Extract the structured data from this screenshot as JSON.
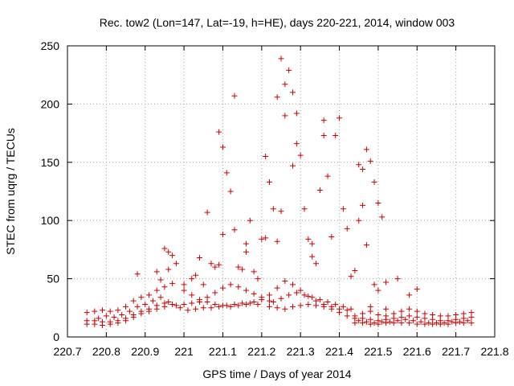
{
  "chart_data": {
    "type": "scatter",
    "title": "Rec. tow2 (Lon=147, Lat=-19, h=HE), days 220-221, 2014, window 003",
    "xlabel": "GPS time / Days of year 2014",
    "ylabel": "STEC from uqrg / TECUs",
    "xlim": [
      220.7,
      221.8
    ],
    "ylim": [
      0,
      250
    ],
    "xticks": [
      "220.7",
      "220.8",
      "220.9",
      "221",
      "221.1",
      "221.2",
      "221.3",
      "221.4",
      "221.5",
      "221.6",
      "221.7",
      "221.8"
    ],
    "yticks": [
      "0",
      "50",
      "100",
      "150",
      "200",
      "250"
    ],
    "grid": true,
    "legend": "none",
    "marker": "plus",
    "color": "#cc0000",
    "series": [
      {
        "name": "STEC",
        "points": [
          [
            220.75,
            21
          ],
          [
            220.77,
            22
          ],
          [
            220.79,
            23
          ],
          [
            220.81,
            22
          ],
          [
            220.83,
            23
          ],
          [
            220.85,
            26
          ],
          [
            220.87,
            31
          ],
          [
            220.89,
            34
          ],
          [
            220.91,
            36
          ],
          [
            220.93,
            40
          ],
          [
            220.95,
            43
          ],
          [
            220.97,
            46
          ],
          [
            220.75,
            14
          ],
          [
            220.77,
            14
          ],
          [
            220.79,
            13
          ],
          [
            220.81,
            13
          ],
          [
            220.83,
            14
          ],
          [
            220.85,
            16
          ],
          [
            220.87,
            19
          ],
          [
            220.89,
            22
          ],
          [
            220.91,
            24
          ],
          [
            220.93,
            27
          ],
          [
            220.95,
            29
          ],
          [
            220.75,
            11
          ],
          [
            220.77,
            11
          ],
          [
            220.79,
            10
          ],
          [
            220.81,
            11
          ],
          [
            220.83,
            12
          ],
          [
            220.85,
            14
          ],
          [
            220.87,
            17
          ],
          [
            220.89,
            20
          ],
          [
            220.91,
            22
          ],
          [
            220.93,
            24
          ],
          [
            220.95,
            26
          ],
          [
            220.97,
            28
          ],
          [
            220.78,
            16
          ],
          [
            220.8,
            18
          ],
          [
            220.82,
            17
          ],
          [
            220.84,
            19
          ],
          [
            220.86,
            22
          ],
          [
            220.88,
            26
          ],
          [
            220.9,
            28
          ],
          [
            220.92,
            31
          ],
          [
            220.94,
            34
          ],
          [
            220.96,
            30
          ],
          [
            220.98,
            27
          ],
          [
            220.88,
            54
          ],
          [
            220.93,
            56
          ],
          [
            220.95,
            76
          ],
          [
            220.96,
            73
          ],
          [
            220.97,
            70
          ],
          [
            220.98,
            63
          ],
          [
            220.96,
            58
          ],
          [
            220.94,
            49
          ],
          [
            221.0,
            45
          ],
          [
            221.02,
            50
          ],
          [
            221.03,
            53
          ],
          [
            221.04,
            68
          ],
          [
            221.05,
            45
          ],
          [
            221.06,
            107
          ],
          [
            221.07,
            63
          ],
          [
            221.08,
            60
          ],
          [
            221.09,
            62
          ],
          [
            221.09,
            176
          ],
          [
            221.1,
            163
          ],
          [
            221.1,
            88
          ],
          [
            221.11,
            141
          ],
          [
            221.12,
            125
          ],
          [
            221.13,
            207
          ],
          [
            221.13,
            92
          ],
          [
            221.14,
            60
          ],
          [
            221.15,
            58
          ],
          [
            221.16,
            80
          ],
          [
            221.16,
            73
          ],
          [
            221.17,
            100
          ],
          [
            221.18,
            56
          ],
          [
            221.19,
            50
          ],
          [
            221.2,
            84
          ],
          [
            221.0,
            40
          ],
          [
            221.02,
            36
          ],
          [
            221.04,
            32
          ],
          [
            221.06,
            30
          ],
          [
            221.08,
            28
          ],
          [
            221.1,
            27
          ],
          [
            221.12,
            26
          ],
          [
            221.14,
            27
          ],
          [
            221.16,
            28
          ],
          [
            221.18,
            30
          ],
          [
            221.2,
            32
          ],
          [
            221.22,
            31
          ],
          [
            221.0,
            28
          ],
          [
            221.02,
            29
          ],
          [
            221.04,
            30
          ],
          [
            221.06,
            34
          ],
          [
            221.08,
            38
          ],
          [
            221.1,
            42
          ],
          [
            221.12,
            45
          ],
          [
            221.14,
            43
          ],
          [
            221.16,
            40
          ],
          [
            221.18,
            37
          ],
          [
            221.2,
            34
          ],
          [
            220.99,
            25
          ],
          [
            221.01,
            23
          ],
          [
            221.03,
            24
          ],
          [
            221.05,
            25
          ],
          [
            221.07,
            25
          ],
          [
            221.09,
            26
          ],
          [
            221.11,
            27
          ],
          [
            221.13,
            28
          ],
          [
            221.15,
            29
          ],
          [
            221.17,
            29
          ],
          [
            221.19,
            28
          ],
          [
            221.21,
            85
          ],
          [
            221.21,
            155
          ],
          [
            221.22,
            133
          ],
          [
            221.23,
            110
          ],
          [
            221.24,
            206
          ],
          [
            221.24,
            82
          ],
          [
            221.25,
            239
          ],
          [
            221.25,
            108
          ],
          [
            221.26,
            217
          ],
          [
            221.26,
            190
          ],
          [
            221.27,
            229
          ],
          [
            221.28,
            210
          ],
          [
            221.28,
            147
          ],
          [
            221.29,
            192
          ],
          [
            221.29,
            166
          ],
          [
            221.3,
            156
          ],
          [
            221.31,
            110
          ],
          [
            221.32,
            84
          ],
          [
            221.33,
            80
          ],
          [
            221.33,
            69
          ],
          [
            221.34,
            63
          ],
          [
            221.35,
            126
          ],
          [
            221.36,
            186
          ],
          [
            221.36,
            173
          ],
          [
            221.37,
            138
          ],
          [
            221.38,
            86
          ],
          [
            221.39,
            173
          ],
          [
            221.4,
            188
          ],
          [
            221.41,
            110
          ],
          [
            221.42,
            93
          ],
          [
            221.43,
            52
          ],
          [
            221.44,
            57
          ],
          [
            221.22,
            36
          ],
          [
            221.24,
            42
          ],
          [
            221.26,
            48
          ],
          [
            221.28,
            45
          ],
          [
            221.3,
            40
          ],
          [
            221.32,
            35
          ],
          [
            221.34,
            31
          ],
          [
            221.36,
            28
          ],
          [
            221.38,
            26
          ],
          [
            221.4,
            24
          ],
          [
            221.42,
            23
          ],
          [
            221.22,
            26
          ],
          [
            221.24,
            25
          ],
          [
            221.26,
            24
          ],
          [
            221.28,
            26
          ],
          [
            221.3,
            27
          ],
          [
            221.32,
            28
          ],
          [
            221.34,
            27
          ],
          [
            221.36,
            26
          ],
          [
            221.38,
            24
          ],
          [
            221.4,
            21
          ],
          [
            221.42,
            18
          ],
          [
            221.44,
            16
          ],
          [
            221.23,
            30
          ],
          [
            221.25,
            33
          ],
          [
            221.27,
            36
          ],
          [
            221.29,
            38
          ],
          [
            221.31,
            36
          ],
          [
            221.33,
            34
          ],
          [
            221.35,
            32
          ],
          [
            221.37,
            30
          ],
          [
            221.39,
            28
          ],
          [
            221.41,
            26
          ],
          [
            221.43,
            24
          ],
          [
            221.45,
            148
          ],
          [
            221.46,
            144
          ],
          [
            221.47,
            161
          ],
          [
            221.48,
            151
          ],
          [
            221.49,
            133
          ],
          [
            221.5,
            115
          ],
          [
            221.51,
            103
          ],
          [
            221.46,
            113
          ],
          [
            221.47,
            79
          ],
          [
            221.45,
            100
          ],
          [
            221.49,
            45
          ],
          [
            221.5,
            40
          ],
          [
            221.52,
            47
          ],
          [
            221.55,
            50
          ],
          [
            221.58,
            36
          ],
          [
            221.6,
            41
          ],
          [
            221.48,
            26
          ],
          [
            221.52,
            24
          ],
          [
            221.44,
            18
          ],
          [
            221.46,
            16
          ],
          [
            221.48,
            15
          ],
          [
            221.5,
            14
          ],
          [
            221.52,
            15
          ],
          [
            221.54,
            16
          ],
          [
            221.56,
            17
          ],
          [
            221.58,
            18
          ],
          [
            221.6,
            17
          ],
          [
            221.62,
            16
          ],
          [
            221.64,
            15
          ],
          [
            221.66,
            14
          ],
          [
            221.68,
            14
          ],
          [
            221.7,
            15
          ],
          [
            221.72,
            16
          ],
          [
            221.74,
            17
          ],
          [
            221.45,
            14
          ],
          [
            221.47,
            13
          ],
          [
            221.49,
            12
          ],
          [
            221.51,
            13
          ],
          [
            221.53,
            13
          ],
          [
            221.55,
            14
          ],
          [
            221.57,
            15
          ],
          [
            221.59,
            14
          ],
          [
            221.61,
            13
          ],
          [
            221.63,
            12
          ],
          [
            221.65,
            12
          ],
          [
            221.67,
            12
          ],
          [
            221.69,
            13
          ],
          [
            221.71,
            13
          ],
          [
            221.73,
            14
          ],
          [
            221.46,
            20
          ],
          [
            221.48,
            22
          ],
          [
            221.5,
            19
          ],
          [
            221.52,
            18
          ],
          [
            221.54,
            20
          ],
          [
            221.56,
            22
          ],
          [
            221.58,
            24
          ],
          [
            221.6,
            22
          ],
          [
            221.62,
            20
          ],
          [
            221.64,
            19
          ],
          [
            221.66,
            18
          ],
          [
            221.68,
            18
          ],
          [
            221.7,
            19
          ],
          [
            221.72,
            20
          ],
          [
            221.74,
            21
          ],
          [
            221.44,
            12
          ],
          [
            221.46,
            12
          ],
          [
            221.48,
            11
          ],
          [
            221.5,
            11
          ],
          [
            221.52,
            12
          ],
          [
            221.54,
            12
          ],
          [
            221.56,
            12
          ],
          [
            221.58,
            12
          ],
          [
            221.6,
            11
          ],
          [
            221.62,
            11
          ],
          [
            221.64,
            11
          ],
          [
            221.66,
            11
          ],
          [
            221.68,
            11
          ],
          [
            221.7,
            12
          ],
          [
            221.72,
            12
          ],
          [
            221.74,
            12
          ]
        ]
      }
    ]
  }
}
